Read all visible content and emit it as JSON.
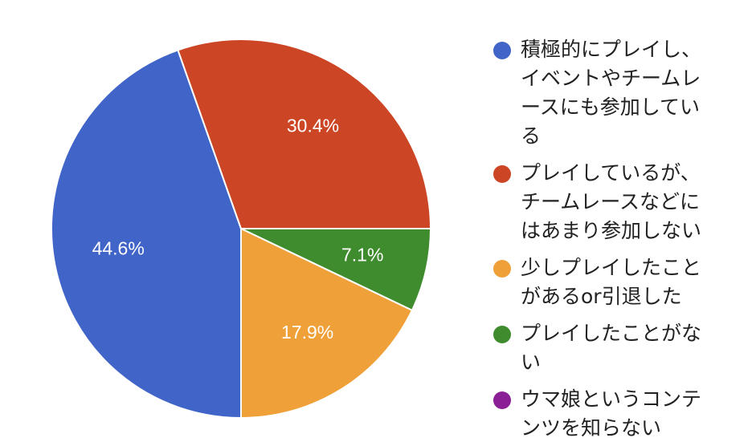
{
  "chart_data": {
    "type": "pie",
    "start_angle_deg": 0,
    "direction": "clockwise",
    "legend_position": "right",
    "slices": [
      {
        "label": "積極的にプレイし、イベントやチームレースにも参加している",
        "value": 44.6,
        "display": "44.6%",
        "color": "#4064c8"
      },
      {
        "label": "プレイしているが、チームレースなどにはあまり参加しない",
        "value": 30.4,
        "display": "30.4%",
        "color": "#cc4525"
      },
      {
        "label": "少しプレイしたことがあるor引退した",
        "value": 17.9,
        "display": "17.9%",
        "color": "#f0a038"
      },
      {
        "label": "プレイしたことがない",
        "value": 7.1,
        "display": "7.1%",
        "color": "#3f8c2e"
      },
      {
        "label": "ウマ娘というコンテンツを知らない",
        "value": 0,
        "display": "",
        "color": "#8b1f96"
      }
    ],
    "draw_order": [
      3,
      2,
      0,
      1
    ]
  }
}
